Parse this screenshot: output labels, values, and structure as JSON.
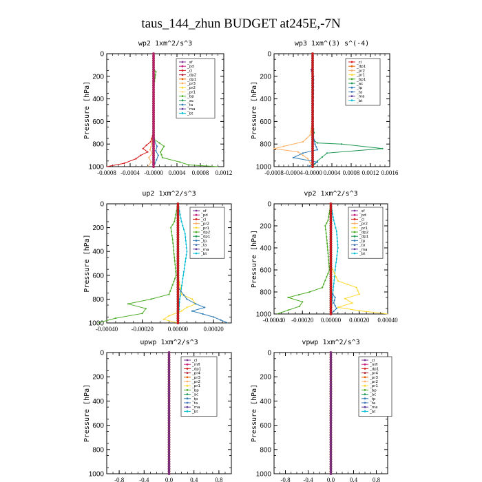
{
  "figure": {
    "title": "taus_144_zhun  BUDGET at245E,-7N"
  },
  "chart_data": [
    {
      "type": "line",
      "title": "wp2   1xm^2/s^3",
      "ylabel": "Pressure  [hPa]",
      "ylim": [
        1000,
        0
      ],
      "xlim": [
        -0.0008,
        0.0012
      ],
      "xticks": [
        "-0.0008",
        "-0.0004",
        "-0.0000",
        "0.0004",
        "0.0008",
        "0.0012"
      ],
      "xtick_values": [
        -0.0008,
        -0.0004,
        0.0,
        0.0004,
        0.0008,
        0.0012
      ],
      "yticks": [
        "0",
        "200",
        "400",
        "600",
        "800",
        "1000"
      ],
      "ytick_values": [
        0,
        200,
        400,
        600,
        800,
        1000
      ],
      "legend": [
        "_sf",
        "_pd",
        "_cl",
        "_dp2",
        "_dp1",
        "_pr3",
        "_pr2",
        "_pr1",
        "_bp",
        "_ac",
        "_ta",
        "_ma",
        "_bt"
      ],
      "legend_colors": [
        "#7b3294",
        "#c51b7d",
        "#d7191c",
        "#b2182b",
        "#e66101",
        "#fdae61",
        "#ffd92f",
        "#fee08b",
        "#4dac26",
        "#1a9850",
        "#2c7bb6",
        "#5e3c99",
        "#00bcd4"
      ],
      "series": [
        {
          "color": "#4dac26",
          "x": [
            0,
            0,
            1e-05,
            4e-05,
            0,
            0,
            -1e-05,
            0.0001,
            0.00018,
            0.00012,
            0.00015,
            0.00045,
            0.0006,
            0.0011
          ],
          "y": [
            0,
            100,
            140,
            160,
            300,
            600,
            750,
            790,
            820,
            870,
            920,
            960,
            985,
            1000
          ]
        },
        {
          "color": "#d7191c",
          "x": [
            0,
            0,
            0,
            -5e-05,
            -0.00012,
            -0.00018,
            -0.0001,
            -0.00022,
            -0.0003,
            -0.0005,
            -0.0008
          ],
          "y": [
            0,
            300,
            700,
            780,
            810,
            840,
            870,
            900,
            930,
            970,
            1000
          ]
        },
        {
          "color": "#2c7bb6",
          "x": [
            0,
            0,
            2e-05,
            6e-05,
            4e-05,
            8e-05,
            5e-05,
            2e-05,
            0
          ],
          "y": [
            0,
            700,
            780,
            820,
            860,
            900,
            940,
            975,
            1000
          ]
        },
        {
          "color": "#fdae61",
          "x": [
            0,
            0,
            -3e-05,
            -6e-05,
            -2e-05,
            -8e-05,
            -4e-05,
            -0.0001
          ],
          "y": [
            0,
            700,
            800,
            850,
            880,
            920,
            960,
            1000
          ]
        },
        {
          "color": "#c51b7d",
          "x": [
            0,
            0,
            0,
            0
          ],
          "y": [
            0,
            400,
            800,
            1000
          ],
          "markers": true
        }
      ]
    },
    {
      "type": "line",
      "title": "wp3   1xm^(3) s^(-4)",
      "ylabel": "Pressure  [hPa]",
      "ylim": [
        1000,
        0
      ],
      "xlim": [
        -0.0008,
        0.0016
      ],
      "xticks": [
        "-0.0008",
        "-0.0004",
        "-0.0000",
        "0.0004",
        "0.0008",
        "0.0012",
        "0.0016"
      ],
      "xtick_values": [
        -0.0008,
        -0.0004,
        0.0,
        0.0004,
        0.0008,
        0.0012,
        0.0016
      ],
      "yticks": [
        "0",
        "200",
        "400",
        "600",
        "800",
        "1000"
      ],
      "ytick_values": [
        0,
        200,
        400,
        600,
        800,
        1000
      ],
      "legend": [
        "_cl",
        "_dp1",
        "_pr2",
        "_pr1",
        "_bp1",
        "_ac",
        "_tp",
        "_ta",
        "_ma",
        "_bt"
      ],
      "legend_colors": [
        "#d7191c",
        "#e66101",
        "#fdae61",
        "#ffd92f",
        "#4dac26",
        "#1a9850",
        "#2c7bb6",
        "#4575b4",
        "#5e3c99",
        "#00bcd4"
      ],
      "series": [
        {
          "color": "#1a9850",
          "x": [
            0,
            0,
            3e-05,
            0,
            0.0001,
            0.0006,
            0.00145,
            0.0003,
            0.0001,
            0.0
          ],
          "y": [
            0,
            600,
            700,
            760,
            790,
            800,
            840,
            880,
            950,
            1000
          ]
        },
        {
          "color": "#fdae61",
          "x": [
            0,
            0,
            -5e-05,
            -0.0002,
            -0.0006,
            -0.0008,
            -0.0003,
            -0.0001,
            0
          ],
          "y": [
            0,
            600,
            720,
            780,
            820,
            840,
            870,
            930,
            1000
          ]
        },
        {
          "color": "#2c7bb6",
          "x": [
            0,
            0,
            5e-05,
            0.0001,
            -0.0002,
            -0.0004,
            0.0001,
            -0.0001
          ],
          "y": [
            0,
            700,
            800,
            850,
            880,
            920,
            960,
            1000
          ]
        },
        {
          "color": "#5e3c99",
          "x": [
            0,
            0,
            -3e-05,
            -2e-05,
            2e-05,
            0
          ],
          "y": [
            0,
            120,
            140,
            160,
            200,
            1000
          ]
        },
        {
          "color": "#d7191c",
          "x": [
            0,
            0,
            0,
            0
          ],
          "y": [
            0,
            400,
            800,
            1000
          ],
          "markers": true
        }
      ]
    },
    {
      "type": "line",
      "title": "up2   1xm^2/s^3",
      "ylabel": "Pressure  [hPa]",
      "ylim": [
        1000,
        0
      ],
      "xlim": [
        -0.0004,
        0.0003
      ],
      "xticks": [
        "-0.00040",
        "-0.00020",
        "0.00000",
        "0.00020"
      ],
      "xtick_values": [
        -0.0004,
        -0.0002,
        0.0,
        0.0002
      ],
      "yticks": [
        "0",
        "200",
        "400",
        "600",
        "800",
        "1000"
      ],
      "ytick_values": [
        0,
        200,
        400,
        600,
        800,
        1000
      ],
      "legend": [
        "_sf",
        "_pd",
        "_cl",
        "_pr2",
        "_pr1",
        "_dp2",
        "_dp1",
        "_tp",
        "_ta",
        "_ma",
        "_bt"
      ],
      "legend_colors": [
        "#7b3294",
        "#c51b7d",
        "#d7191c",
        "#fdae61",
        "#ffd92f",
        "#4dac26",
        "#1a9850",
        "#2c7bb6",
        "#4575b4",
        "#5e3c99",
        "#00bcd4"
      ],
      "series": [
        {
          "color": "#4dac26",
          "x": [
            0,
            -2e-05,
            -4e-05,
            -3e-05,
            -1e-05,
            -5e-05,
            -0.00015,
            -0.00028,
            -0.00018,
            -0.0002,
            -0.00035,
            -0.00045
          ],
          "y": [
            0,
            150,
            200,
            300,
            600,
            760,
            800,
            840,
            880,
            920,
            960,
            1000
          ]
        },
        {
          "color": "#00bcd4",
          "x": [
            0,
            2e-05,
            4e-05,
            5e-05,
            3e-05,
            1e-05,
            0
          ],
          "y": [
            0,
            150,
            250,
            400,
            600,
            800,
            1000
          ]
        },
        {
          "color": "#ffd92f",
          "x": [
            0,
            0,
            2e-05,
            8e-05,
            0.0001,
            5e-05,
            2e-05,
            -5e-05,
            -8e-05,
            0
          ],
          "y": [
            0,
            600,
            760,
            800,
            840,
            870,
            900,
            940,
            970,
            1000
          ]
        },
        {
          "color": "#2c7bb6",
          "x": [
            0,
            0,
            5e-05,
            0.0001,
            0.00015,
            8e-05,
            0.0002,
            0.00028
          ],
          "y": [
            0,
            700,
            800,
            840,
            870,
            900,
            950,
            1000
          ]
        },
        {
          "color": "#d7191c",
          "x": [
            0,
            0,
            0,
            0
          ],
          "y": [
            0,
            400,
            800,
            1000
          ],
          "markers": true
        }
      ]
    },
    {
      "type": "line",
      "title": "vp2   1xm^2/s^3",
      "ylabel": "Pressure  [hPa]",
      "ylim": [
        1000,
        0
      ],
      "xlim": [
        -0.0004,
        0.0004
      ],
      "xticks": [
        "-0.00040",
        "-0.00020",
        "0.00000",
        "0.00020",
        "0.00040"
      ],
      "xtick_values": [
        -0.0004,
        -0.0002,
        0.0,
        0.0002,
        0.0004
      ],
      "yticks": [
        "0",
        "200",
        "400",
        "600",
        "800",
        "1000"
      ],
      "ytick_values": [
        0,
        200,
        400,
        600,
        800,
        1000
      ],
      "legend": [
        "_sf",
        "_pd",
        "_cl",
        "_pr2",
        "_pr1",
        "_dp2",
        "_dp1",
        "_tp",
        "_ta",
        "_ma",
        "_bt"
      ],
      "legend_colors": [
        "#7b3294",
        "#c51b7d",
        "#d7191c",
        "#fdae61",
        "#ffd92f",
        "#4dac26",
        "#1a9850",
        "#2c7bb6",
        "#4575b4",
        "#5e3c99",
        "#00bcd4"
      ],
      "series": [
        {
          "color": "#4dac26",
          "x": [
            0,
            -2e-05,
            -4e-05,
            -3e-05,
            -1e-05,
            -6e-05,
            -0.00015,
            -0.0003,
            -0.0002,
            -0.00022,
            -0.00038
          ],
          "y": [
            0,
            150,
            200,
            300,
            600,
            760,
            800,
            850,
            890,
            930,
            1000
          ]
        },
        {
          "color": "#00bcd4",
          "x": [
            0,
            2e-05,
            4e-05,
            5e-05,
            3e-05,
            0.0
          ],
          "y": [
            0,
            150,
            250,
            400,
            600,
            1000
          ]
        },
        {
          "color": "#ffd92f",
          "x": [
            0,
            0,
            5e-05,
            0.00018,
            0.0002,
            0.0001,
            0.00015,
            5e-05,
            0.0002,
            0.0004
          ],
          "y": [
            0,
            560,
            700,
            760,
            820,
            860,
            900,
            940,
            970,
            1000
          ]
        },
        {
          "color": "#2c7bb6",
          "x": [
            0,
            0,
            3e-05,
            2e-05,
            4e-05,
            0.0
          ],
          "y": [
            0,
            800,
            850,
            900,
            950,
            1000
          ]
        },
        {
          "color": "#d7191c",
          "x": [
            0,
            0,
            0,
            0
          ],
          "y": [
            0,
            400,
            800,
            1000
          ],
          "markers": true
        }
      ]
    },
    {
      "type": "line",
      "title": "upwp   1xm^2/s^3",
      "ylabel": "Pressure  [hPa]",
      "ylim": [
        1000,
        0
      ],
      "xlim": [
        -1.0,
        1.0
      ],
      "xticks": [
        "-0.8",
        "-0.4",
        "0.0",
        "0.4",
        "0.8"
      ],
      "xtick_values": [
        -0.8,
        -0.4,
        0.0,
        0.4,
        0.8
      ],
      "yticks": [
        "0",
        "200",
        "400",
        "600",
        "800",
        "1000"
      ],
      "ytick_values": [
        0,
        200,
        400,
        600,
        800,
        1000
      ],
      "legend": [
        "_cl",
        "_mfl",
        "_dp1",
        "_pr4",
        "_pr3",
        "_pr2",
        "_pr1",
        "_bp",
        "_ac",
        "_tp",
        "_ta",
        "_ma",
        "_bt"
      ],
      "legend_colors": [
        "#7b3294",
        "#c51b7d",
        "#d7191c",
        "#b2182b",
        "#e66101",
        "#fdae61",
        "#ffd92f",
        "#4dac26",
        "#1a9850",
        "#2c7bb6",
        "#4575b4",
        "#5e3c99",
        "#00bcd4"
      ],
      "series": [
        {
          "color": "#7b3294",
          "x": [
            0,
            0,
            0,
            0
          ],
          "y": [
            0,
            400,
            800,
            1000
          ],
          "markers": true
        }
      ]
    },
    {
      "type": "line",
      "title": "vpwp   1xm^2/s^3",
      "ylabel": "Pressure  [hPa]",
      "ylim": [
        1000,
        0
      ],
      "xlim": [
        -1.0,
        1.0
      ],
      "xticks": [
        "-0.8",
        "-0.4",
        "0.0",
        "0.4",
        "0.8"
      ],
      "xtick_values": [
        -0.8,
        -0.4,
        0.0,
        0.4,
        0.8
      ],
      "yticks": [
        "0",
        "200",
        "400",
        "600",
        "800",
        "1000"
      ],
      "ytick_values": [
        0,
        200,
        400,
        600,
        800,
        1000
      ],
      "legend": [
        "_cl",
        "_mfl",
        "_dp1",
        "_pr4",
        "_pr3",
        "_pr2",
        "_pr1",
        "_bp",
        "_ac",
        "_tp",
        "_ta",
        "_ma",
        "_bt"
      ],
      "legend_colors": [
        "#7b3294",
        "#c51b7d",
        "#d7191c",
        "#b2182b",
        "#e66101",
        "#fdae61",
        "#ffd92f",
        "#4dac26",
        "#1a9850",
        "#2c7bb6",
        "#4575b4",
        "#5e3c99",
        "#00bcd4"
      ],
      "series": [
        {
          "color": "#7b3294",
          "x": [
            0,
            0,
            0,
            0
          ],
          "y": [
            0,
            400,
            800,
            1000
          ],
          "markers": true
        }
      ]
    }
  ]
}
